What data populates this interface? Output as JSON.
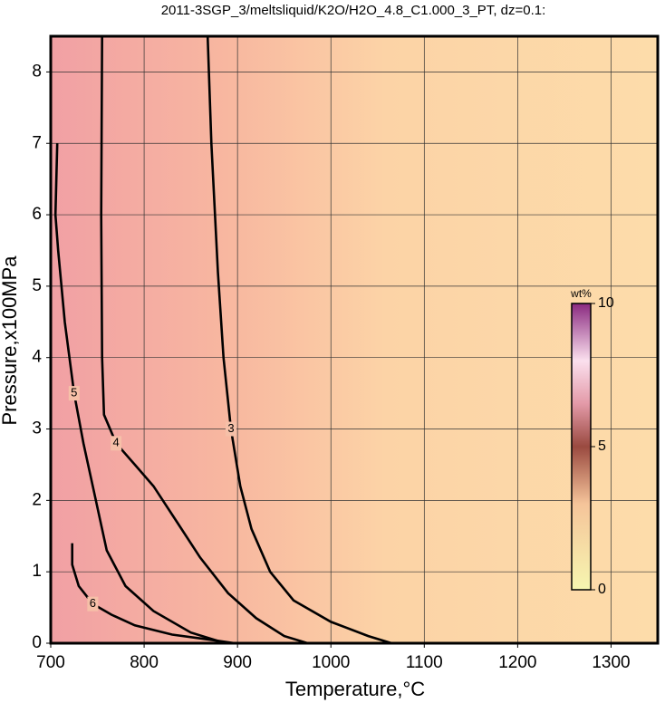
{
  "chart_data": {
    "type": "contour",
    "title": "2011-3SGP_3/meltsliquid/K2O/H2O_4.8_C1.000_3_PT, dz=0.1:",
    "x_label": "Temperature,°C",
    "y_label": "Pressure,x100MPa",
    "xlim": [
      700,
      1350
    ],
    "ylim": [
      0,
      8.5
    ],
    "xticks": [
      700,
      800,
      900,
      1000,
      1100,
      1200,
      1300
    ],
    "yticks": [
      0,
      1,
      2,
      3,
      4,
      5,
      6,
      7,
      8
    ],
    "grid": true,
    "colorbar": {
      "label": "wt%",
      "lim": [
        0,
        10
      ],
      "ticks": [
        0,
        5,
        10
      ]
    },
    "contours": [
      {
        "level": 3,
        "x": [
          868,
          872,
          879,
          885,
          893,
          903,
          915,
          935,
          960,
          1000,
          1040,
          1065
        ],
        "y": [
          8.5,
          7,
          5.2,
          4,
          3,
          2.2,
          1.6,
          1.0,
          0.6,
          0.3,
          0.1,
          0
        ]
      },
      {
        "level": 4,
        "x": [
          755,
          754,
          755,
          757,
          770,
          790,
          810,
          835,
          860,
          890,
          920,
          950,
          975
        ],
        "y": [
          8.5,
          6,
          4,
          3.2,
          2.8,
          2.5,
          2.2,
          1.7,
          1.2,
          0.7,
          0.35,
          0.1,
          0
        ]
      },
      {
        "level": 5,
        "x": [
          707,
          705,
          708,
          715,
          725,
          735,
          745,
          760,
          780,
          810,
          850,
          887
        ],
        "y": [
          7,
          6,
          5.5,
          4.5,
          3.5,
          2.8,
          2.2,
          1.3,
          0.8,
          0.45,
          0.15,
          0
        ]
      },
      {
        "level": 6,
        "x": [
          723,
          723,
          730,
          745,
          765,
          790,
          830,
          870,
          897
        ],
        "y": [
          1.4,
          1.1,
          0.8,
          0.55,
          0.4,
          0.25,
          0.12,
          0.05,
          0
        ]
      }
    ]
  }
}
